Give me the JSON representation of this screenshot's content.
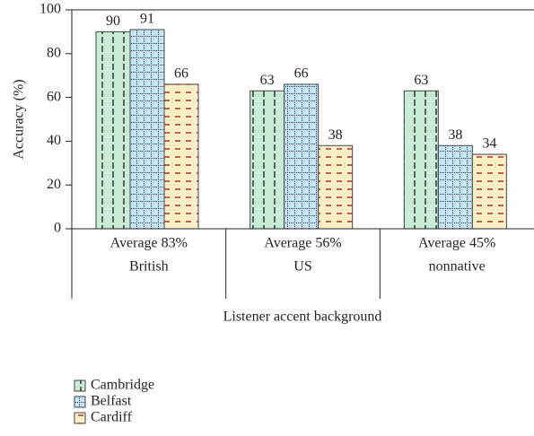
{
  "chart_data": {
    "type": "bar",
    "y_label": "Accuracy (%)",
    "x_label": "Listener accent background",
    "categories": [
      "British",
      "US",
      "nonnative"
    ],
    "category_averages": [
      "Average 83%",
      "Average 56%",
      "Average 45%"
    ],
    "series": [
      {
        "name": "Cambridge",
        "color": "#c8ecd6",
        "values": [
          90,
          63,
          63
        ]
      },
      {
        "name": "Belfast",
        "color": "#c4e6f6",
        "values": [
          91,
          66,
          38
        ]
      },
      {
        "name": "Cardiff",
        "color": "#fbf0c8",
        "values": [
          66,
          38,
          34
        ]
      }
    ],
    "ylim": [
      0,
      100
    ],
    "yticks": [
      0,
      20,
      40,
      60,
      80,
      100
    ]
  }
}
